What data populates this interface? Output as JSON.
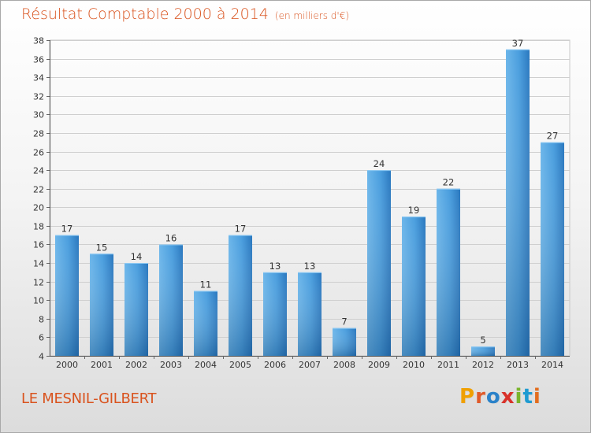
{
  "chart_data": {
    "type": "bar",
    "title": "Résultat Comptable 2000 à 2014",
    "subtitle": "(en milliers d'€)",
    "categories": [
      "2000",
      "2001",
      "2002",
      "2003",
      "2004",
      "2005",
      "2006",
      "2007",
      "2008",
      "2009",
      "2010",
      "2011",
      "2012",
      "2013",
      "2014"
    ],
    "values": [
      17,
      15,
      14,
      16,
      11,
      17,
      13,
      13,
      7,
      24,
      19,
      22,
      5,
      37,
      27
    ],
    "ylim": [
      4,
      38
    ],
    "yticks": [
      4,
      6,
      8,
      10,
      12,
      14,
      16,
      18,
      20,
      22,
      24,
      26,
      28,
      30,
      32,
      34,
      36,
      38
    ],
    "grid": true,
    "bar_color": "#3a8fd4"
  },
  "commune": "LE MESNIL-GILBERT",
  "logo": {
    "letters": [
      "P",
      "r",
      "o",
      "x",
      "i",
      "t",
      "i"
    ],
    "colors": [
      "#f0a000",
      "#e05a2a",
      "#2b82c9",
      "#d8322a",
      "#7ab52c",
      "#1f9bd1",
      "#e36d1e"
    ]
  }
}
